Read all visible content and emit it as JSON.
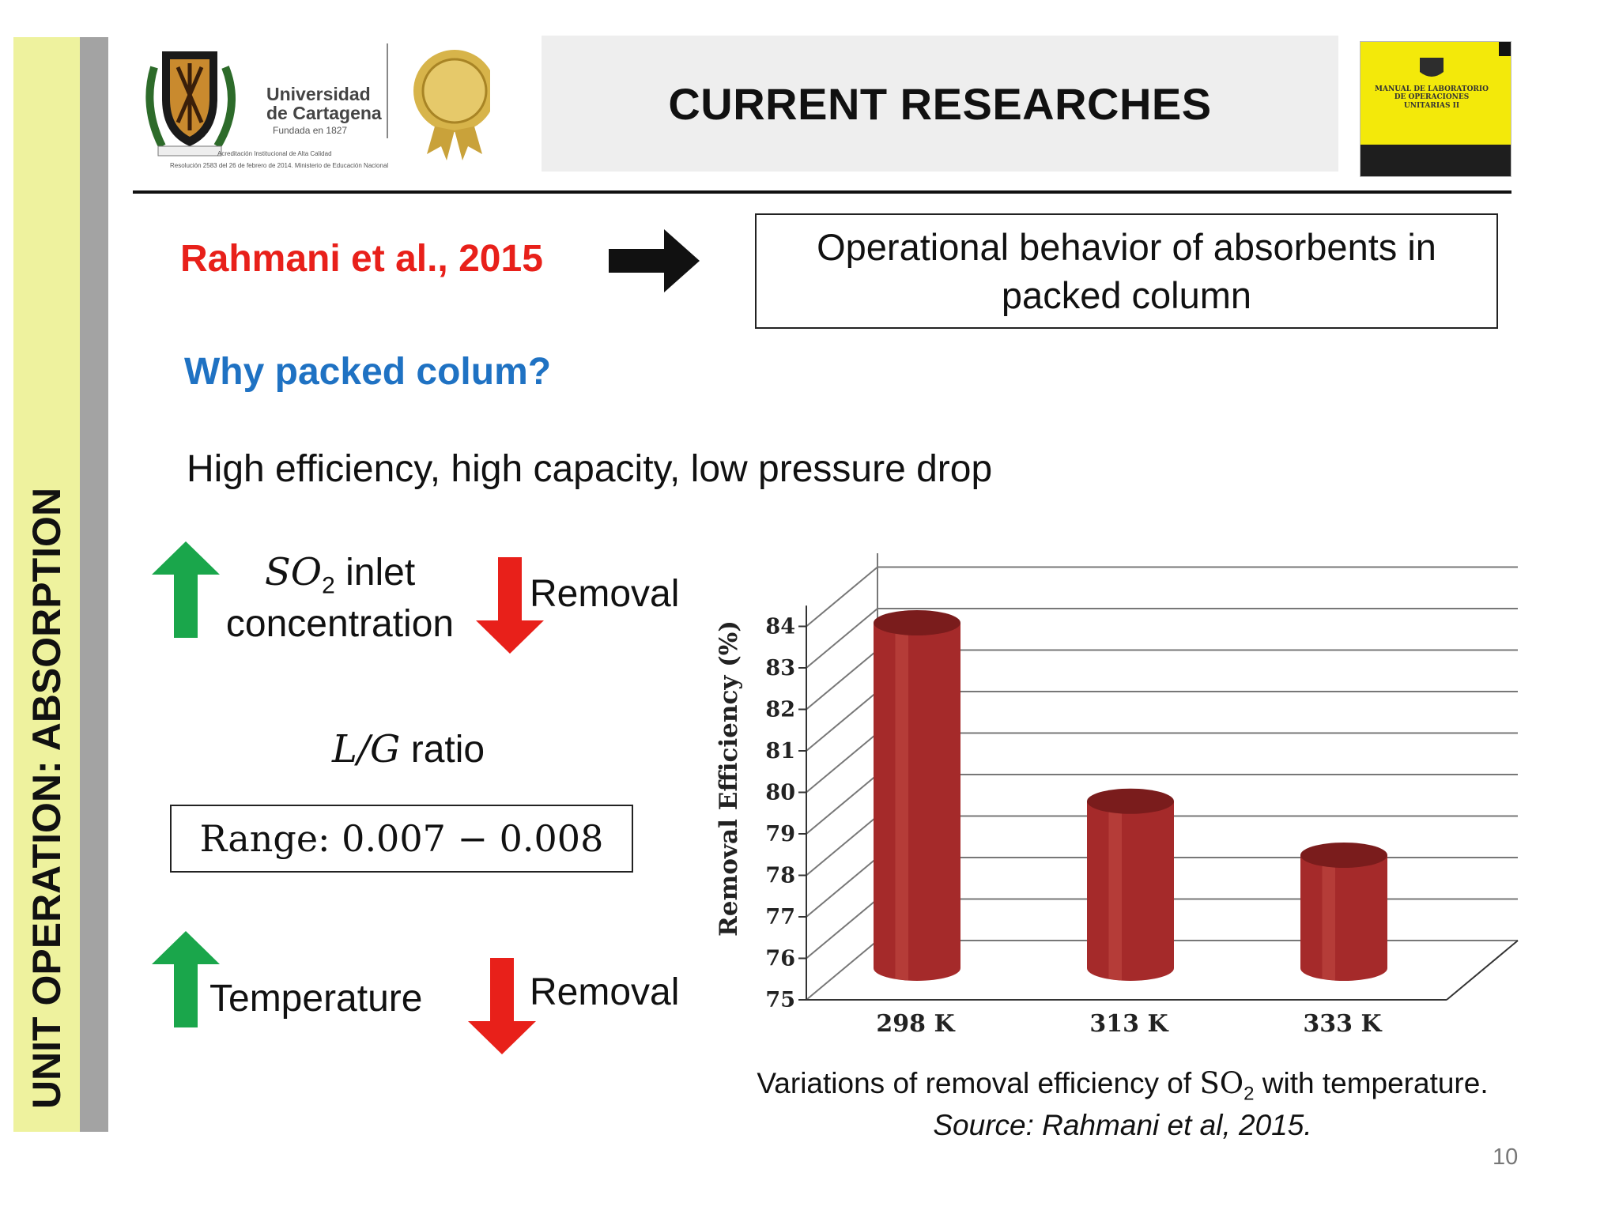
{
  "sidebar": {
    "title": "UNIT OPERATION: ABSORPTION"
  },
  "header": {
    "title": "CURRENT RESEARCHES",
    "logo": {
      "name_line1": "Universidad",
      "name_line2": "de Cartagena",
      "founded": "Fundada en 1827",
      "accreditation_line1": "Acreditación Institucional de Alta Calidad",
      "accreditation_line2": "Resolución 2583 del 26 de febrero de 2014. Ministerio de Educación Nacional"
    },
    "book": {
      "title": "MANUAL DE LABORATORIO DE OPERACIONES UNITARIAS II"
    }
  },
  "citation": "Rahmani et al., 2015",
  "topic": "Operational behavior of absorbents in packed column",
  "why_heading": "Why packed colum?",
  "benefits": "High efficiency, high capacity, low pressure drop",
  "effects": {
    "so2_math": "SO",
    "so2_sub": "2",
    "so2_text": " inlet",
    "so2_line2": "concentration",
    "removal_1": "Removal",
    "lg_math": "L/G",
    "lg_text": " ratio",
    "range": "Range: 0.007 − 0.008",
    "temperature": "Temperature",
    "removal_2": "Removal"
  },
  "colors": {
    "up_arrow": "#1aa64b",
    "down_arrow": "#e8201a",
    "bar": "#a52a2a",
    "heading_blue": "#1f72c3",
    "citation_red": "#e8201a"
  },
  "chart_data": {
    "type": "bar",
    "categories": [
      "298 K",
      "313 K",
      "333 K"
    ],
    "values": [
      83.8,
      79.5,
      78.2
    ],
    "title": "",
    "xlabel": "",
    "ylabel": "Removal Efficiency (%)",
    "ylim": [
      75,
      84
    ],
    "yticks": [
      75,
      76,
      77,
      78,
      79,
      80,
      81,
      82,
      83,
      84
    ],
    "grid": true
  },
  "caption": {
    "prefix": "Variations of removal efficiency of ",
    "math": "SO",
    "sub": "2",
    "suffix": " with temperature.",
    "source": "Source: Rahmani et al, 2015."
  },
  "page_number": "10"
}
